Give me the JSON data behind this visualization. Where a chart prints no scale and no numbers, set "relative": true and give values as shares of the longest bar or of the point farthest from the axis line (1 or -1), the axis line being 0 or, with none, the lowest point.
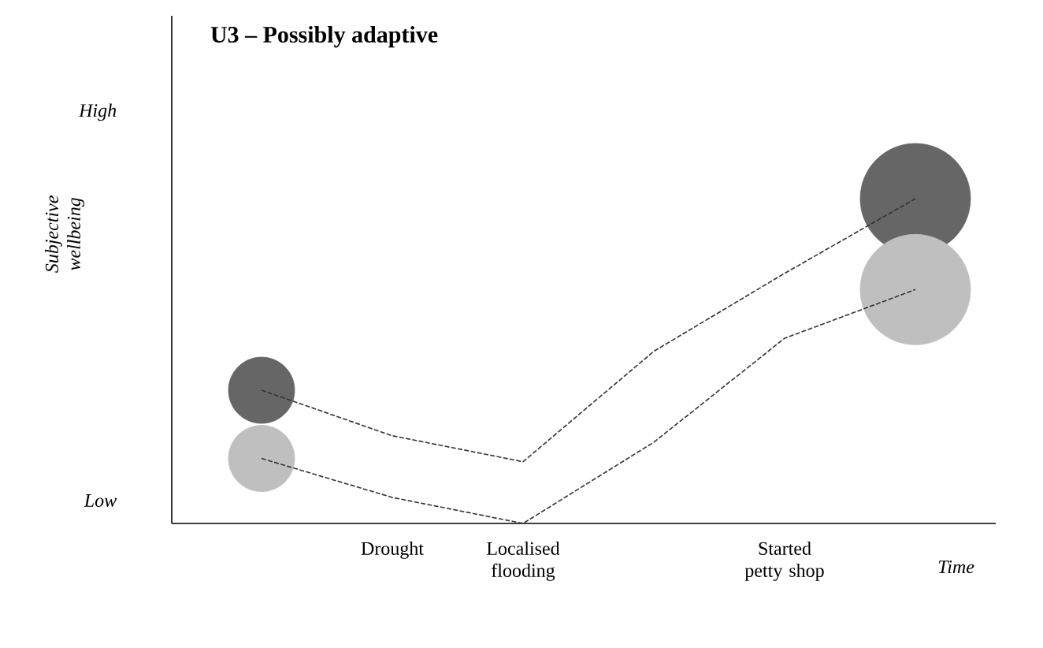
{
  "chart_data": {
    "type": "line",
    "title": "U3 – Possibly adaptive",
    "xlabel": "Time",
    "ylabel": "Subjective wellbeing",
    "relative": true,
    "categories": [
      null,
      "Drought",
      "Localised flooding",
      null,
      "Started petty shop",
      null
    ],
    "annotations": [
      "High",
      "Low"
    ],
    "line_style": "dashed",
    "marker": "none",
    "grid": false,
    "series": [
      {
        "color": "#333333",
        "values": [
          0.41,
          0.27,
          0.19,
          0.53,
          0.77,
          1.0
        ]
      },
      {
        "color": "#333333",
        "values": [
          0.2,
          0.08,
          0.0,
          0.25,
          0.57,
          0.72
        ]
      },
      {
        "type": "bubble",
        "color": "#666666",
        "values": [
          0.41,
          null,
          null,
          null,
          null,
          1.0
        ],
        "sizes": [
          0.36,
          null,
          null,
          null,
          null,
          1
        ]
      },
      {
        "type": "bubble",
        "color": "#bfbfbf",
        "values": [
          0.2,
          null,
          null,
          null,
          null,
          0.72
        ],
        "sizes": [
          0.36,
          null,
          null,
          null,
          null,
          1
        ]
      }
    ]
  }
}
